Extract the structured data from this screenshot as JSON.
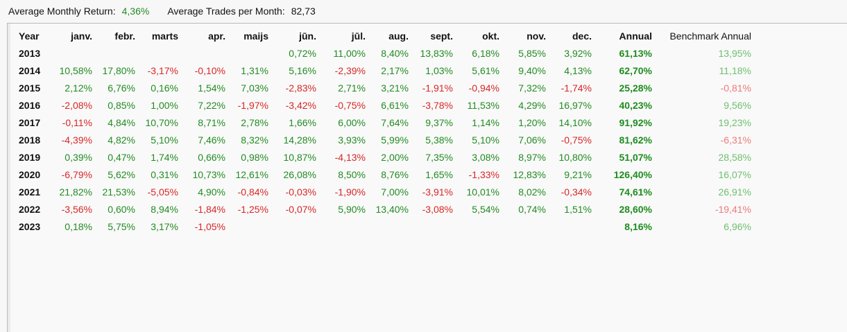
{
  "summary": {
    "avg_return_label": "Average Monthly Return:",
    "avg_return_value": "4,36%",
    "avg_trades_label": "Average Trades per Month:",
    "avg_trades_value": "82,73"
  },
  "table": {
    "headers": [
      "Year",
      "janv.",
      "febr.",
      "marts",
      "apr.",
      "maijs",
      "jūn.",
      "jūl.",
      "aug.",
      "sept.",
      "okt.",
      "nov.",
      "dec.",
      "Annual",
      "Benchmark Annual"
    ],
    "rows": [
      {
        "year": "2013",
        "months": [
          "",
          "",
          "",
          "",
          "",
          "0,72%",
          "11,00%",
          "8,40%",
          "13,83%",
          "6,18%",
          "5,85%",
          "3,92%"
        ],
        "annual": "61,13%",
        "benchmark": "13,95%"
      },
      {
        "year": "2014",
        "months": [
          "10,58%",
          "17,80%",
          "-3,17%",
          "-0,10%",
          "1,31%",
          "5,16%",
          "-2,39%",
          "2,17%",
          "1,03%",
          "5,61%",
          "9,40%",
          "4,13%"
        ],
        "annual": "62,70%",
        "benchmark": "11,18%"
      },
      {
        "year": "2015",
        "months": [
          "2,12%",
          "6,76%",
          "0,16%",
          "1,54%",
          "7,03%",
          "-2,83%",
          "2,71%",
          "3,21%",
          "-1,91%",
          "-0,94%",
          "7,32%",
          "-1,74%"
        ],
        "annual": "25,28%",
        "benchmark": "-0,81%"
      },
      {
        "year": "2016",
        "months": [
          "-2,08%",
          "0,85%",
          "1,00%",
          "7,22%",
          "-1,97%",
          "-3,42%",
          "-0,75%",
          "6,61%",
          "-3,78%",
          "11,53%",
          "4,29%",
          "16,97%"
        ],
        "annual": "40,23%",
        "benchmark": "9,56%"
      },
      {
        "year": "2017",
        "months": [
          "-0,11%",
          "4,84%",
          "10,70%",
          "8,71%",
          "2,78%",
          "1,66%",
          "6,00%",
          "7,64%",
          "9,37%",
          "1,14%",
          "1,20%",
          "14,10%"
        ],
        "annual": "91,92%",
        "benchmark": "19,23%"
      },
      {
        "year": "2018",
        "months": [
          "-4,39%",
          "4,82%",
          "5,10%",
          "7,46%",
          "8,32%",
          "14,28%",
          "3,93%",
          "5,99%",
          "5,38%",
          "5,10%",
          "7,06%",
          "-0,75%"
        ],
        "annual": "81,62%",
        "benchmark": "-6,31%"
      },
      {
        "year": "2019",
        "months": [
          "0,39%",
          "0,47%",
          "1,74%",
          "0,66%",
          "0,98%",
          "10,87%",
          "-4,13%",
          "2,00%",
          "7,35%",
          "3,08%",
          "8,97%",
          "10,80%"
        ],
        "annual": "51,07%",
        "benchmark": "28,58%"
      },
      {
        "year": "2020",
        "months": [
          "-6,79%",
          "5,62%",
          "0,31%",
          "10,73%",
          "12,61%",
          "26,08%",
          "8,50%",
          "8,76%",
          "1,65%",
          "-1,33%",
          "12,83%",
          "9,21%"
        ],
        "annual": "126,40%",
        "benchmark": "16,07%"
      },
      {
        "year": "2021",
        "months": [
          "21,82%",
          "21,53%",
          "-5,05%",
          "4,90%",
          "-0,84%",
          "-0,03%",
          "-1,90%",
          "7,00%",
          "-3,91%",
          "10,01%",
          "8,02%",
          "-0,34%"
        ],
        "annual": "74,61%",
        "benchmark": "26,91%"
      },
      {
        "year": "2022",
        "months": [
          "-3,56%",
          "0,60%",
          "8,94%",
          "-1,84%",
          "-1,25%",
          "-0,07%",
          "5,90%",
          "13,40%",
          "-3,08%",
          "5,54%",
          "0,74%",
          "1,51%"
        ],
        "annual": "28,60%",
        "benchmark": "-19,41%"
      },
      {
        "year": "2023",
        "months": [
          "0,18%",
          "5,75%",
          "3,17%",
          "-1,05%",
          "",
          "",
          "",
          "",
          "",
          "",
          "",
          ""
        ],
        "annual": "8,16%",
        "benchmark": "6,96%"
      }
    ]
  },
  "colors": {
    "positive": "#228b22",
    "negative": "#d92626",
    "benchmark_positive": "#6fbf6f",
    "benchmark_negative": "#ee7a7a"
  }
}
